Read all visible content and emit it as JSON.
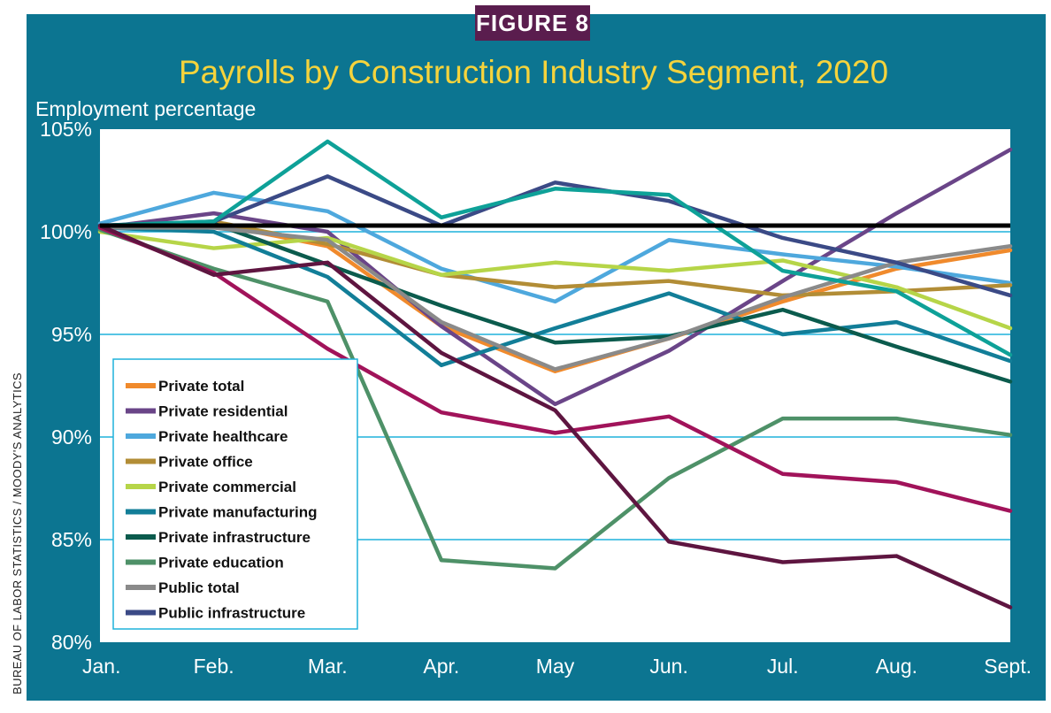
{
  "figure_label": "FIGURE 8",
  "source_credit": "BUREAU OF LABOR STATISTICS / MOODY'S ANALYTICS",
  "colors": {
    "frame": "#0c7591",
    "title": "#f5d33c",
    "label_bg": "#5a1d4e",
    "plot_bg": "#ffffff",
    "gridline": "#1fb2db",
    "baseline": "#000000"
  },
  "chart_data": {
    "type": "line",
    "title": "Payrolls by Construction Industry Segment, 2020",
    "xlabel": "",
    "ylabel": "Employment percentage",
    "categories": [
      "Jan.",
      "Feb.",
      "Mar.",
      "Apr.",
      "May",
      "Jun.",
      "Jul.",
      "Aug.",
      "Sept."
    ],
    "ylim": [
      80,
      105
    ],
    "yticks": [
      80,
      85,
      90,
      95,
      100,
      105
    ],
    "ytick_labels": [
      "80%",
      "85%",
      "90%",
      "95%",
      "100%",
      "105%"
    ],
    "grid": true,
    "legend_position": "lower-left",
    "reference_line": {
      "value": 100.3,
      "color": "#000000"
    },
    "series": [
      {
        "name": "Private total",
        "color": "#f08a2c",
        "values": [
          100.2,
          100.4,
          99.3,
          95.4,
          93.2,
          94.8,
          96.6,
          98.2,
          99.1
        ],
        "in_legend": true
      },
      {
        "name": "Private residential",
        "color": "#6a4588",
        "values": [
          100.2,
          100.9,
          100.0,
          95.4,
          91.6,
          94.2,
          97.6,
          100.9,
          104.0
        ],
        "in_legend": true
      },
      {
        "name": "Private healthcare",
        "color": "#4ea8dd",
        "values": [
          100.4,
          101.9,
          101.0,
          98.2,
          96.6,
          99.6,
          98.9,
          98.3,
          97.5
        ],
        "in_legend": true
      },
      {
        "name": "Private office",
        "color": "#b28d36",
        "values": [
          100.2,
          100.5,
          99.4,
          97.9,
          97.3,
          97.6,
          96.9,
          97.1,
          97.4
        ],
        "in_legend": true
      },
      {
        "name": "Private commercial",
        "color": "#b6d548",
        "values": [
          100.0,
          99.2,
          99.7,
          97.9,
          98.5,
          98.1,
          98.6,
          97.3,
          95.3
        ],
        "in_legend": true
      },
      {
        "name": "Private manufacturing",
        "color": "#127e98",
        "values": [
          100.2,
          100.0,
          97.8,
          93.5,
          95.3,
          97.0,
          95.0,
          95.6,
          93.7
        ],
        "in_legend": true
      },
      {
        "name": "Private infrastructure",
        "color": "#0b5b4d",
        "values": [
          100.2,
          100.4,
          98.4,
          96.4,
          94.6,
          94.9,
          96.2,
          94.4,
          92.7
        ],
        "in_legend": true
      },
      {
        "name": "Private education",
        "color": "#4e9168",
        "values": [
          100.1,
          98.2,
          96.6,
          84.0,
          83.6,
          88.0,
          90.9,
          90.9,
          90.1
        ],
        "in_legend": true
      },
      {
        "name": "Public total",
        "color": "#8a8a8a",
        "values": [
          100.2,
          100.2,
          99.6,
          95.6,
          93.3,
          94.8,
          96.8,
          98.5,
          99.3
        ],
        "in_legend": true
      },
      {
        "name": "Public infrastructure",
        "color": "#3b4a86",
        "values": [
          100.3,
          100.5,
          102.7,
          100.3,
          102.4,
          101.5,
          99.7,
          98.5,
          96.9
        ],
        "in_legend": true
      },
      {
        "name": "Teal series (unlabeled)",
        "color": "#0ea198",
        "values": [
          100.3,
          100.5,
          104.4,
          100.7,
          102.1,
          101.8,
          98.1,
          97.1,
          94.0
        ],
        "in_legend": false
      },
      {
        "name": "Crimson series (unlabeled)",
        "color": "#a1135a",
        "values": [
          100.2,
          98.0,
          94.3,
          91.2,
          90.2,
          91.0,
          88.2,
          87.8,
          86.4
        ],
        "in_legend": false
      },
      {
        "name": "Dark plum series (unlabeled)",
        "color": "#5e1540",
        "values": [
          100.3,
          97.9,
          98.5,
          94.1,
          91.3,
          84.9,
          83.9,
          84.2,
          81.7
        ],
        "in_legend": false
      }
    ]
  }
}
